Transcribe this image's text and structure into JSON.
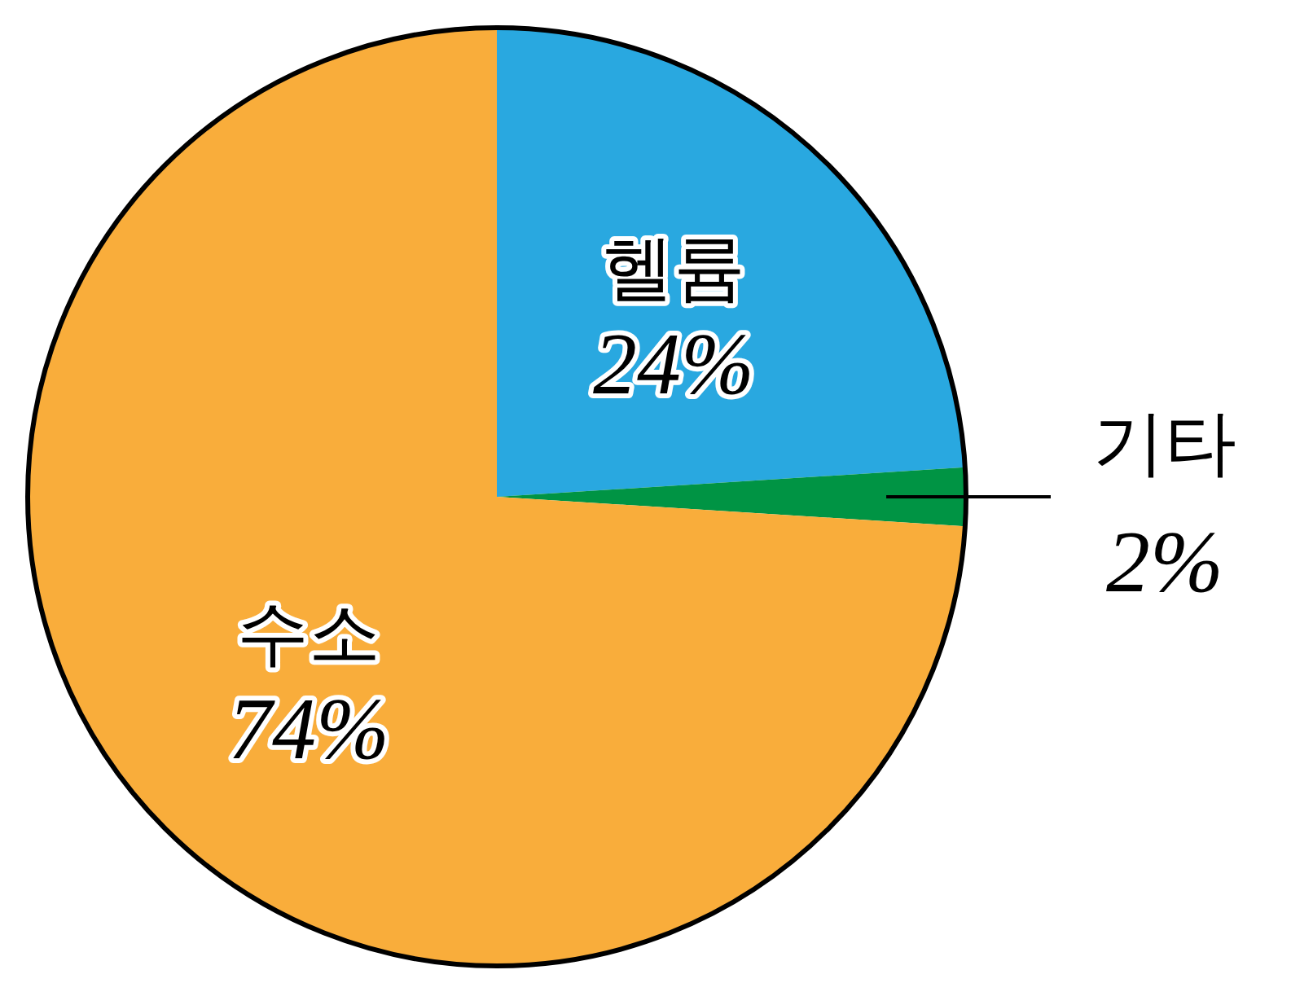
{
  "chart_data": {
    "type": "pie",
    "categories": [
      "헬륨",
      "기타",
      "수소"
    ],
    "values": [
      24,
      2,
      74
    ],
    "colors": [
      "#29a8e0",
      "#009444",
      "#f9ad3b"
    ],
    "value_labels": [
      "24%",
      "2%",
      "74%"
    ]
  }
}
